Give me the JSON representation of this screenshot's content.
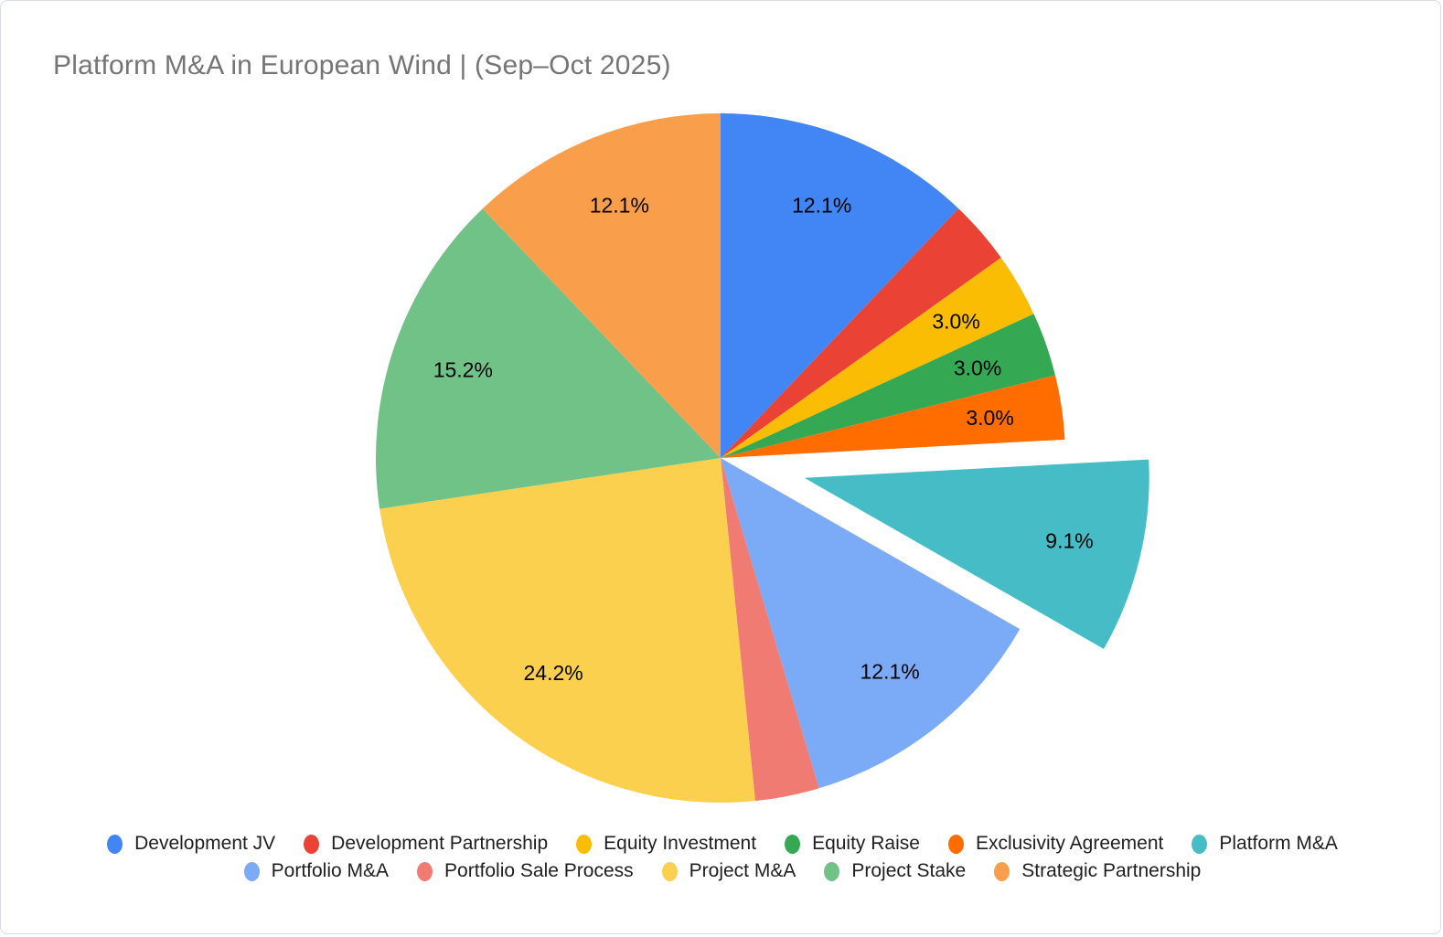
{
  "title": {
    "text": "Platform M&A in European Wind | (Sep–Oct 2025)"
  },
  "chart_data": {
    "type": "pie",
    "title": "Platform M&A in European Wind | (Sep–Oct 2025)",
    "legend_position": "bottom",
    "direction": "clockwise",
    "start_angle": "12-oclock",
    "slices": [
      {
        "label": "Development JV",
        "pct": 12.1,
        "pct_label": "12.1%",
        "color": "#4285F4",
        "pull": 0
      },
      {
        "label": "Development Partnership",
        "pct": 3.0,
        "pct_label": "",
        "color": "#EA4335",
        "pull": 0
      },
      {
        "label": "Equity Investment",
        "pct": 3.0,
        "pct_label": "3.0%",
        "color": "#FBBC04",
        "pull": 0
      },
      {
        "label": "Equity Raise",
        "pct": 3.0,
        "pct_label": "3.0%",
        "color": "#34A853",
        "pull": 0
      },
      {
        "label": "Exclusivity Agreement",
        "pct": 3.0,
        "pct_label": "3.0%",
        "color": "#FF6D01",
        "pull": 0
      },
      {
        "label": "Platform M&A",
        "pct": 9.1,
        "pct_label": "9.1%",
        "color": "#46BDC6",
        "pull": 0.25
      },
      {
        "label": "Portfolio M&A",
        "pct": 12.1,
        "pct_label": "12.1%",
        "color": "#7BAAF7",
        "pull": 0
      },
      {
        "label": "Portfolio Sale Process",
        "pct": 3.0,
        "pct_label": "",
        "color": "#F07B72",
        "pull": 0
      },
      {
        "label": "Project M&A",
        "pct": 24.2,
        "pct_label": "24.2%",
        "color": "#FCD04F",
        "pull": 0
      },
      {
        "label": "Project Stake",
        "pct": 15.2,
        "pct_label": "15.2%",
        "color": "#71C287",
        "pull": 0
      },
      {
        "label": "Strategic Partnership",
        "pct": 12.1,
        "pct_label": "12.1%",
        "color": "#F99E4A",
        "pull": 0
      }
    ]
  },
  "legend": {
    "rows": [
      [
        0,
        1,
        2,
        3,
        4,
        5
      ],
      [
        6,
        7,
        8,
        9,
        10
      ]
    ]
  }
}
